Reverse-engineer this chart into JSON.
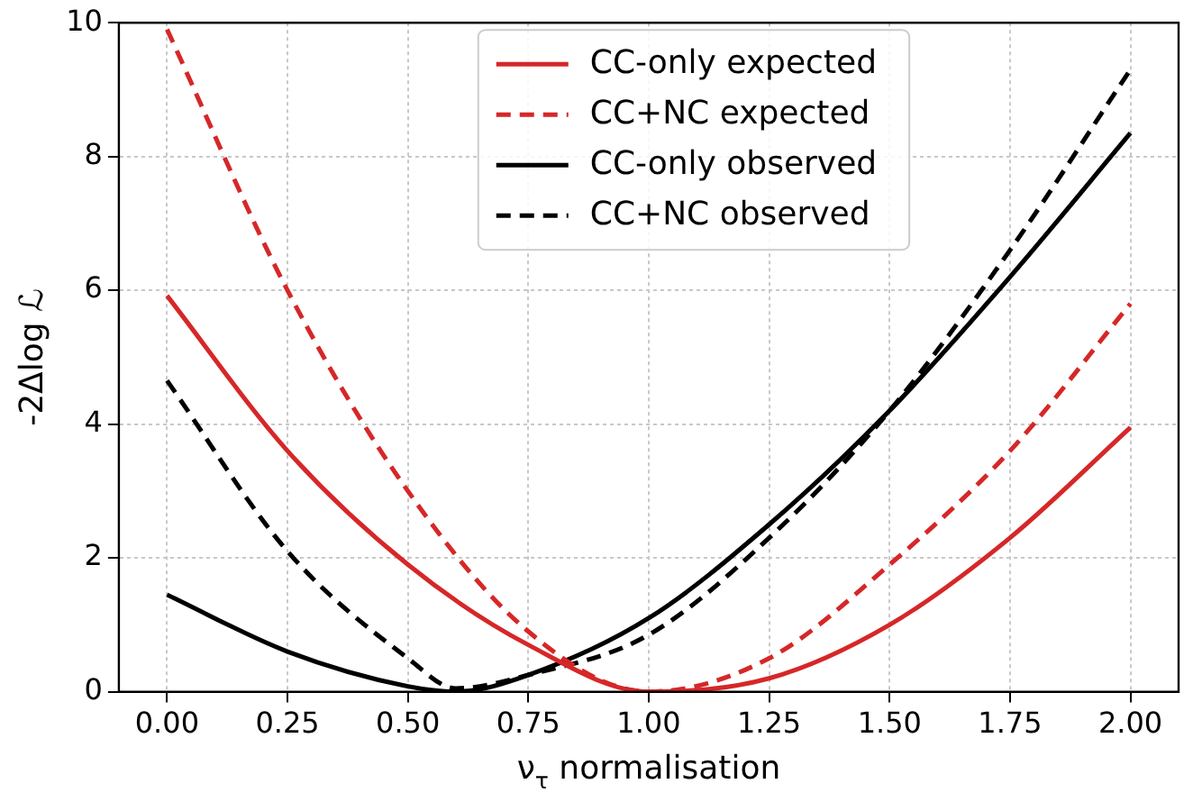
{
  "chart_data": {
    "type": "line",
    "xlabel": "ν$_{τ}$ normalisation",
    "ylabel": "-2Δlog ℒ",
    "xlim": [
      -0.1,
      2.1
    ],
    "ylim": [
      0,
      10
    ],
    "xticks": [
      {
        "value": 0,
        "label": "0.00"
      },
      {
        "value": 0.25,
        "label": "0.25"
      },
      {
        "value": 0.5,
        "label": "0.50"
      },
      {
        "value": 0.75,
        "label": "0.75"
      },
      {
        "value": 1,
        "label": "1.00"
      },
      {
        "value": 1.25,
        "label": "1.25"
      },
      {
        "value": 1.5,
        "label": "1.50"
      },
      {
        "value": 1.75,
        "label": "1.75"
      },
      {
        "value": 2,
        "label": "2.00"
      }
    ],
    "yticks": [
      0,
      2,
      4,
      6,
      8,
      10
    ],
    "grid": true,
    "legend": "top",
    "marker": "none",
    "x": [
      0,
      0.25,
      0.5,
      0.75,
      1,
      1.25,
      1.5,
      1.75,
      2
    ],
    "series": [
      {
        "name": "CC-only expected",
        "color": "#d62728",
        "line_style": "solid",
        "values": [
          5.92,
          3.6,
          1.9,
          0.7,
          0,
          0.2,
          1.0,
          2.3,
          3.95
        ]
      },
      {
        "name": "CC+NC expected",
        "color": "#d62728",
        "line_style": "dashed",
        "values": [
          9.9,
          6.0,
          3.0,
          0.9,
          0,
          0.5,
          1.9,
          3.6,
          5.8
        ]
      },
      {
        "name": "CC-only observed",
        "color": "#000000",
        "line_style": "solid",
        "x": [
          0,
          0.25,
          0.5,
          0.6,
          0.75,
          1,
          1.25,
          1.5,
          1.75,
          2
        ],
        "values": [
          1.45,
          0.6,
          0.08,
          0,
          0.25,
          1.1,
          2.5,
          4.2,
          6.2,
          8.35
        ]
      },
      {
        "name": "CC+NC observed",
        "color": "#000000",
        "line_style": "dashed",
        "x": [
          0,
          0.25,
          0.5,
          0.6,
          0.75,
          1,
          1.25,
          1.5,
          1.75,
          2
        ],
        "values": [
          4.65,
          2.1,
          0.5,
          0.05,
          0.25,
          0.85,
          2.3,
          4.2,
          6.6,
          9.3
        ]
      }
    ]
  }
}
